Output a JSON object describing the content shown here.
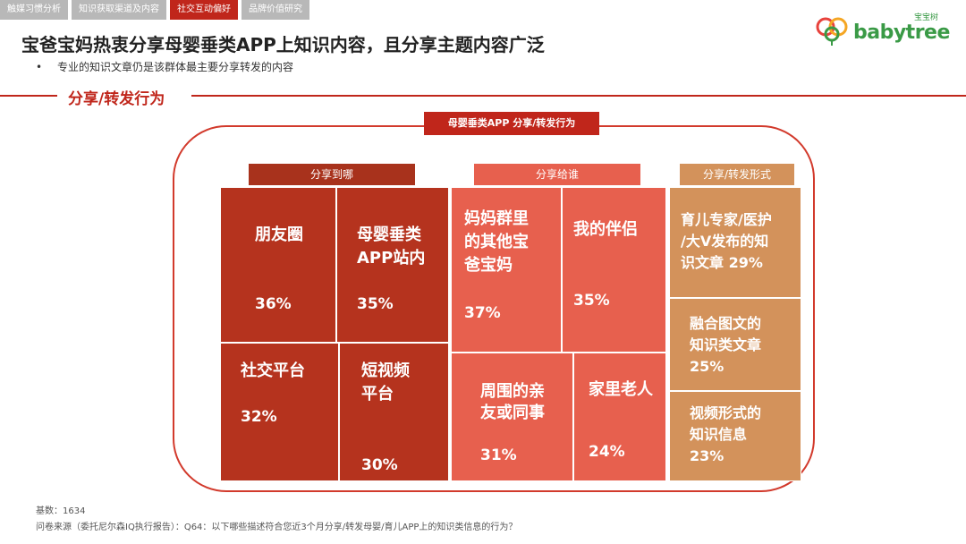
{
  "tabs": [
    "触媒习惯分析",
    "知识获取渠道及内容",
    "社交互动偏好",
    "品牌价值研究"
  ],
  "logo": {
    "text": "babytree",
    "cn": "宝宝树"
  },
  "title": "宝爸宝妈热衷分享母婴垂类APP上知识内容，且分享主题内容广泛",
  "bullet": "专业的知识文章仍是该群体最主要分享转发的内容",
  "section_title": "分享/转发行为",
  "frame_label": "母婴垂类APP 分享/转发行为",
  "groups": {
    "where": {
      "header": "分享到哪"
    },
    "who": {
      "header": "分享给谁"
    },
    "form": {
      "header": "分享/转发形式"
    }
  },
  "cells": {
    "moments": {
      "line1": "朋友圈",
      "line2": "",
      "pct": "36%"
    },
    "inapp": {
      "line1": "母婴垂类",
      "line2": "APP站内",
      "pct": "35%"
    },
    "social": {
      "line1": "社交平台",
      "line2": "",
      "pct": "32%"
    },
    "shortvideo": {
      "line1": "短视频",
      "line2": "平台",
      "pct": "30%"
    },
    "moms": {
      "line1": "妈妈群里",
      "line2": "的其他宝",
      "line3": "爸宝妈",
      "pct": "37%"
    },
    "partner": {
      "line1": "我的伴侣",
      "pct": "35%"
    },
    "relatives": {
      "line1": "周围的亲",
      "line2": "友或同事",
      "pct": "31%"
    },
    "elders": {
      "line1": "家里老人",
      "pct": "24%"
    },
    "expert": {
      "line1": "育儿专家/医护",
      "line2": "/大V发布的知",
      "line3": "识文章 29%"
    },
    "graphic": {
      "line1": "融合图文的",
      "line2": "知识类文章",
      "line3": "25%"
    },
    "video": {
      "line1": "视频形式的",
      "line2": "知识信息",
      "line3": "23%"
    }
  },
  "footnote": {
    "base": "基数：1634",
    "source": "问卷来源（委托尼尔森IQ执行报告）：Q64：以下哪些描述符合您近3个月分享/转发母婴/育儿APP上的知识类信息的行为？"
  }
}
